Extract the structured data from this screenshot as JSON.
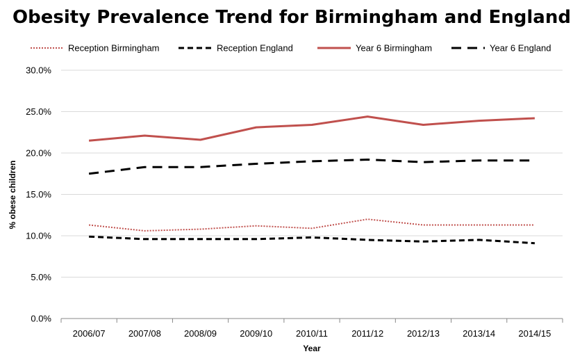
{
  "chart_data": {
    "type": "line",
    "title": "Obesity Prevalence Trend for Birmingham and England",
    "xlabel": "Year",
    "ylabel": "% obese children",
    "categories": [
      "2006/07",
      "2007/08",
      "2008/09",
      "2009/10",
      "2010/11",
      "2011/12",
      "2012/13",
      "2013/14",
      "2014/15"
    ],
    "ylim": [
      0,
      30
    ],
    "yticks": [
      0,
      5,
      10,
      15,
      20,
      25,
      30
    ],
    "ytick_labels": [
      "0.0%",
      "5.0%",
      "10.0%",
      "15.0%",
      "20.0%",
      "25.0%",
      "30.0%"
    ],
    "grid": true,
    "legend_position": "top",
    "series": [
      {
        "name": "Reception Birmingham",
        "values": [
          11.3,
          10.6,
          10.8,
          11.2,
          10.9,
          12.0,
          11.3,
          11.3,
          11.3
        ],
        "color": "#c0504d",
        "style": "dotted"
      },
      {
        "name": "Reception England",
        "values": [
          9.9,
          9.6,
          9.6,
          9.6,
          9.8,
          9.5,
          9.3,
          9.5,
          9.1
        ],
        "color": "#000000",
        "style": "dashed"
      },
      {
        "name": "Year 6 Birmingham",
        "values": [
          21.5,
          22.1,
          21.6,
          23.1,
          23.4,
          24.4,
          23.4,
          23.9,
          24.2
        ],
        "color": "#c0504d",
        "style": "solid"
      },
      {
        "name": "Year 6 England",
        "values": [
          17.5,
          18.3,
          18.3,
          18.7,
          19.0,
          19.2,
          18.9,
          19.1,
          19.1
        ],
        "color": "#000000",
        "style": "long-dashed"
      }
    ]
  }
}
